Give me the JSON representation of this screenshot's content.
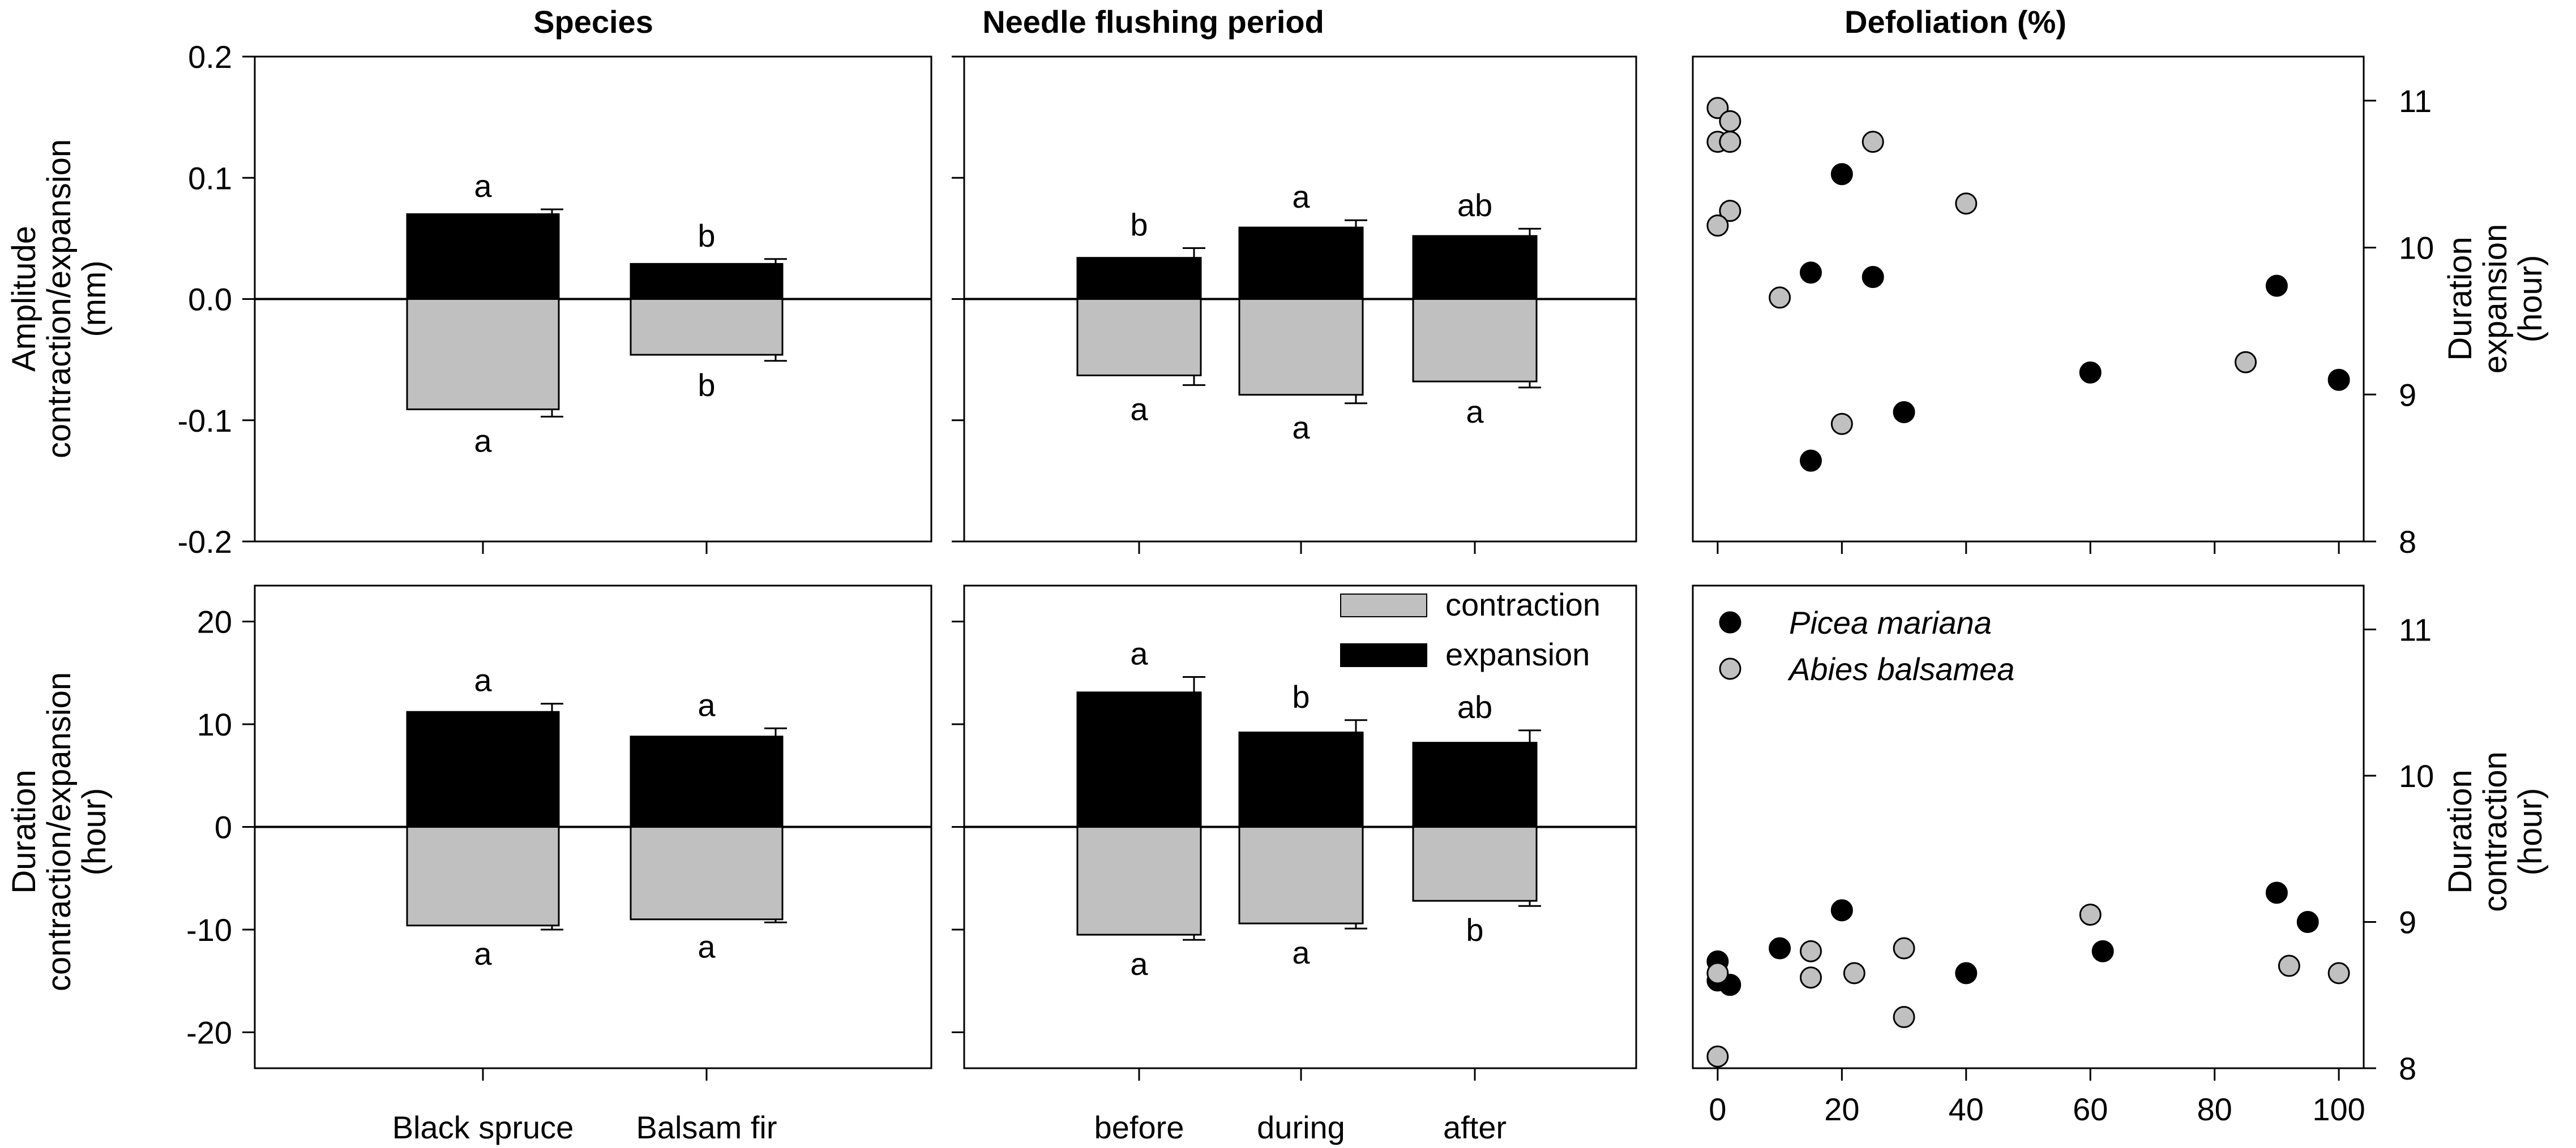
{
  "colors": {
    "contraction": "#c0c0c0",
    "expansion": "#000000",
    "picea": "#000000",
    "abies": "#c0c0c0"
  },
  "column_titles": [
    "Species",
    "Needle flushing period",
    "Defoliation (%)"
  ],
  "row_labels": {
    "amplitude": [
      "Amplitude",
      "contraction/expansion",
      "(mm)"
    ],
    "duration": [
      "Duration",
      "contraction/expansion",
      "(hour)"
    ]
  },
  "right_labels": {
    "expansion": [
      "Duration",
      "expansion",
      "(hour)"
    ],
    "contraction": [
      "Duration",
      "contraction",
      "(hour)"
    ]
  },
  "legend_bars": {
    "contraction": "contraction",
    "expansion": "expansion"
  },
  "legend_species": {
    "picea": "Picea mariana",
    "abies": "Abies balsamea"
  },
  "chart_data": [
    {
      "id": "amp_species",
      "type": "bar",
      "ylim": [
        -0.2,
        0.2
      ],
      "yticks": [
        "0.2",
        "0.1",
        "0.0",
        "-0.1",
        "-0.2"
      ],
      "ytick_values": [
        0.2,
        0.1,
        0.0,
        -0.1,
        -0.2
      ],
      "categories": [
        "Black spruce",
        "Balsam fir"
      ],
      "series": [
        {
          "name": "expansion",
          "values": [
            0.07,
            0.029
          ],
          "errors": [
            0.004,
            0.004
          ],
          "letters": [
            "a",
            "b"
          ]
        },
        {
          "name": "contraction",
          "values": [
            -0.091,
            -0.046
          ],
          "errors": [
            0.006,
            0.005
          ],
          "letters": [
            "a",
            "b"
          ]
        }
      ]
    },
    {
      "id": "amp_period",
      "type": "bar",
      "ylim": [
        -0.2,
        0.2
      ],
      "categories": [
        "before",
        "during",
        "after"
      ],
      "series": [
        {
          "name": "expansion",
          "values": [
            0.034,
            0.059,
            0.052
          ],
          "errors": [
            0.008,
            0.006,
            0.006
          ],
          "letters": [
            "b",
            "a",
            "ab"
          ]
        },
        {
          "name": "contraction",
          "values": [
            -0.063,
            -0.079,
            -0.068
          ],
          "errors": [
            0.008,
            0.007,
            0.005
          ],
          "letters": [
            "a",
            "a",
            "a"
          ]
        }
      ]
    },
    {
      "id": "dur_species",
      "type": "bar",
      "ylim": [
        -23.5,
        23.5
      ],
      "yticks": [
        "20",
        "10",
        "0",
        "-10",
        "-20"
      ],
      "ytick_values": [
        20,
        10,
        0,
        -10,
        -20
      ],
      "categories": [
        "Black spruce",
        "Balsam fir"
      ],
      "series": [
        {
          "name": "expansion",
          "values": [
            11.2,
            8.8
          ],
          "errors": [
            0.8,
            0.8
          ],
          "letters": [
            "a",
            "a"
          ]
        },
        {
          "name": "contraction",
          "values": [
            -9.6,
            -9.0
          ],
          "errors": [
            0.4,
            0.3
          ],
          "letters": [
            "a",
            "a"
          ]
        }
      ]
    },
    {
      "id": "dur_period",
      "type": "bar",
      "ylim": [
        -23.5,
        23.5
      ],
      "categories": [
        "before",
        "during",
        "after"
      ],
      "series": [
        {
          "name": "expansion",
          "values": [
            13.1,
            9.2,
            8.2
          ],
          "errors": [
            1.5,
            1.2,
            1.2
          ],
          "letters": [
            "a",
            "b",
            "ab"
          ]
        },
        {
          "name": "contraction",
          "values": [
            -10.5,
            -9.4,
            -7.2
          ],
          "errors": [
            0.5,
            0.5,
            0.5
          ],
          "letters": [
            "a",
            "a",
            "b"
          ]
        }
      ]
    },
    {
      "id": "defol_expansion",
      "type": "scatter",
      "xlim": [
        -4,
        104
      ],
      "ylim": [
        8,
        11.3
      ],
      "yticks": [
        "11",
        "10",
        "9",
        "8"
      ],
      "ytick_values": [
        11,
        10,
        9,
        8
      ],
      "series": [
        {
          "name": "Picea mariana",
          "x": [
            20,
            15,
            25,
            15,
            30,
            60,
            90,
            100
          ],
          "y": [
            10.5,
            9.83,
            9.8,
            8.55,
            8.88,
            9.15,
            9.74,
            9.1
          ]
        },
        {
          "name": "Abies balsamea",
          "x": [
            0,
            2,
            0,
            2,
            2,
            0,
            25,
            40,
            10,
            20,
            85
          ],
          "y": [
            10.95,
            10.86,
            10.72,
            10.72,
            10.25,
            10.15,
            10.72,
            10.3,
            9.66,
            8.8,
            9.22
          ]
        }
      ]
    },
    {
      "id": "defol_contraction",
      "type": "scatter",
      "xlim": [
        -4,
        104
      ],
      "ylim": [
        8,
        11.3
      ],
      "xticks": [
        "0",
        "20",
        "40",
        "60",
        "80",
        "100"
      ],
      "xtick_values": [
        0,
        20,
        40,
        60,
        80,
        100
      ],
      "yticks": [
        "11",
        "10",
        "9",
        "8"
      ],
      "ytick_values": [
        11,
        10,
        9,
        8
      ],
      "series": [
        {
          "name": "Picea mariana",
          "x": [
            20,
            10,
            0,
            0,
            2,
            40,
            62,
            90,
            95
          ],
          "y": [
            9.08,
            8.82,
            8.73,
            8.6,
            8.57,
            8.65,
            8.8,
            9.2,
            9.0
          ]
        },
        {
          "name": "Abies balsamea",
          "x": [
            0,
            0,
            15,
            15,
            22,
            30,
            30,
            60,
            92,
            100
          ],
          "y": [
            8.65,
            8.08,
            8.8,
            8.62,
            8.65,
            8.82,
            8.35,
            9.05,
            8.7,
            8.65
          ]
        }
      ]
    }
  ]
}
